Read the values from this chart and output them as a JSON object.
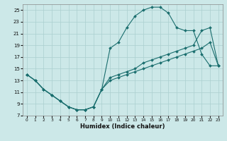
{
  "xlabel": "Humidex (Indice chaleur)",
  "bg_color": "#cce8e8",
  "grid_color": "#aacfcf",
  "line_color": "#1a6e6e",
  "xlim": [
    -0.5,
    23.5
  ],
  "ylim": [
    7,
    26
  ],
  "xticks": [
    0,
    1,
    2,
    3,
    4,
    5,
    6,
    7,
    8,
    9,
    10,
    11,
    12,
    13,
    14,
    15,
    16,
    17,
    18,
    19,
    20,
    21,
    22,
    23
  ],
  "yticks": [
    7,
    9,
    11,
    13,
    15,
    17,
    19,
    21,
    23,
    25
  ],
  "line1_x": [
    0,
    1,
    2,
    3,
    4,
    5,
    6,
    7,
    8,
    9,
    10,
    11,
    12,
    13,
    14,
    15,
    16,
    17,
    18,
    19,
    20,
    21,
    22,
    23
  ],
  "line1_y": [
    14,
    13,
    11.5,
    10.5,
    9.5,
    8.5,
    8.0,
    8.0,
    8.5,
    11.5,
    18.5,
    19.5,
    22.0,
    24.0,
    25.0,
    25.5,
    25.5,
    24.5,
    22.0,
    21.5,
    21.5,
    17.5,
    15.5,
    15.5
  ],
  "line2_x": [
    0,
    1,
    2,
    3,
    4,
    5,
    6,
    7,
    8,
    9,
    10,
    11,
    12,
    13,
    14,
    15,
    16,
    17,
    18,
    19,
    20,
    21,
    22,
    23
  ],
  "line2_y": [
    14,
    13,
    11.5,
    10.5,
    9.5,
    8.5,
    8.0,
    8.0,
    8.5,
    11.5,
    13.5,
    14.0,
    14.5,
    15.0,
    16.0,
    16.5,
    17.0,
    17.5,
    18.0,
    18.5,
    19.0,
    21.5,
    22.0,
    15.5
  ],
  "line3_x": [
    0,
    1,
    2,
    3,
    4,
    5,
    6,
    7,
    8,
    9,
    10,
    11,
    12,
    13,
    14,
    15,
    16,
    17,
    18,
    19,
    20,
    21,
    22,
    23
  ],
  "line3_y": [
    14,
    13,
    11.5,
    10.5,
    9.5,
    8.5,
    8.0,
    8.0,
    8.5,
    11.5,
    13.0,
    13.5,
    14.0,
    14.5,
    15.0,
    15.5,
    16.0,
    16.5,
    17.0,
    17.5,
    18.0,
    18.5,
    19.5,
    15.5
  ]
}
